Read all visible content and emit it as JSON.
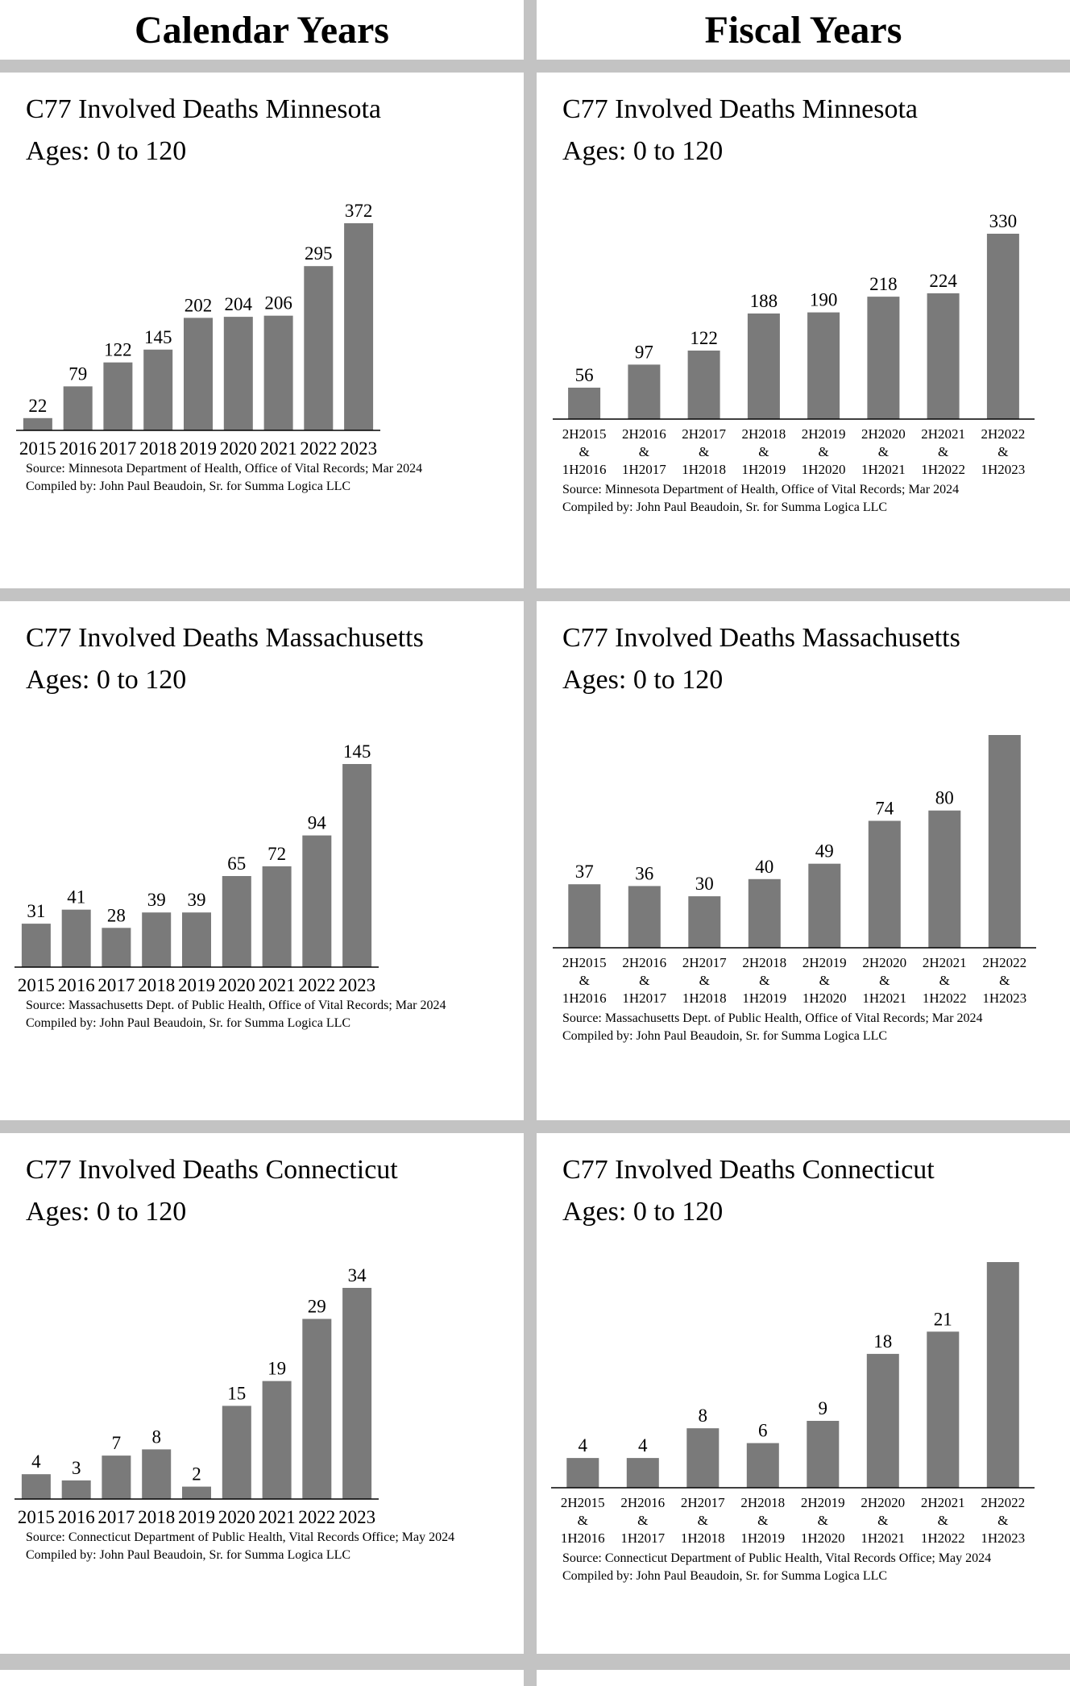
{
  "headers": {
    "calendar": "Calendar Years",
    "fiscal": "Fiscal Years"
  },
  "colors": {
    "bar": "#7a7a7a",
    "divider": "#c3c3c3"
  },
  "chart_data": [
    {
      "type": "bar",
      "title": "C77 Involved Deaths Minnesota",
      "subtitle": "Ages:  0 to 120",
      "categories": [
        "2015",
        "2016",
        "2017",
        "2018",
        "2019",
        "2020",
        "2021",
        "2022",
        "2023"
      ],
      "values": [
        22,
        79,
        122,
        145,
        202,
        204,
        206,
        295,
        372
      ],
      "ylim": [
        0,
        372
      ],
      "source": "Source:  Minnesota Department of Health, Office of Vital Records; Mar 2024",
      "compiled": "Compiled by:  John Paul Beaudoin, Sr. for Summa Logica LLC",
      "xlabel": "",
      "ylabel": ""
    },
    {
      "type": "bar",
      "title": "C77 Involved Deaths Minnesota",
      "subtitle": "Ages:  0 to 120",
      "categories": [
        [
          "2H2015",
          "&",
          "1H2016"
        ],
        [
          "2H2016",
          "&",
          "1H2017"
        ],
        [
          "2H2017",
          "&",
          "1H2018"
        ],
        [
          "2H2018",
          "&",
          "1H2019"
        ],
        [
          "2H2019",
          "&",
          "1H2020"
        ],
        [
          "2H2020",
          "&",
          "1H2021"
        ],
        [
          "2H2021",
          "&",
          "1H2022"
        ],
        [
          "2H2022",
          "&",
          "1H2023"
        ]
      ],
      "values": [
        56,
        97,
        122,
        188,
        190,
        218,
        224,
        330
      ],
      "ylim": [
        0,
        330
      ],
      "source": "Source:  Minnesota Department of Health, Office of Vital Records; Mar 2024",
      "compiled": "Compiled by:  John Paul Beaudoin, Sr. for Summa Logica LLC",
      "xlabel": "",
      "ylabel": ""
    },
    {
      "type": "bar",
      "title": "C77 Involved Deaths Massachusetts",
      "subtitle": "Ages:  0 to 120",
      "categories": [
        "2015",
        "2016",
        "2017",
        "2018",
        "2019",
        "2020",
        "2021",
        "2022",
        "2023"
      ],
      "values": [
        31,
        41,
        28,
        39,
        39,
        65,
        72,
        94,
        145
      ],
      "ylim": [
        0,
        145
      ],
      "source": "Source:  Massachusetts Dept. of Public Health, Office of Vital Records; Mar 2024",
      "compiled": "Compiled by:  John Paul Beaudoin, Sr. for Summa Logica LLC",
      "xlabel": "",
      "ylabel": ""
    },
    {
      "type": "bar",
      "title": "C77 Involved Deaths Massachusetts",
      "subtitle": "Ages:  0 to 120",
      "categories": [
        [
          "2H2015",
          "&",
          "1H2016"
        ],
        [
          "2H2016",
          "&",
          "1H2017"
        ],
        [
          "2H2017",
          "&",
          "1H2018"
        ],
        [
          "2H2018",
          "&",
          "1H2019"
        ],
        [
          "2H2019",
          "&",
          "1H2020"
        ],
        [
          "2H2020",
          "&",
          "1H2021"
        ],
        [
          "2H2021",
          "&",
          "1H2022"
        ],
        [
          "2H2022",
          "&",
          "1H2023"
        ]
      ],
      "values": [
        37,
        36,
        30,
        40,
        49,
        74,
        80,
        124
      ],
      "ylim": [
        0,
        124
      ],
      "source": "Source:  Massachusetts Dept. of Public Health, Office of Vital Records; Mar 2024",
      "compiled": "Compiled by:  John Paul Beaudoin, Sr. for Summa Logica LLC",
      "xlabel": "",
      "ylabel": ""
    },
    {
      "type": "bar",
      "title": "C77 Involved Deaths Connecticut",
      "subtitle": "Ages:  0 to 120",
      "categories": [
        "2015",
        "2016",
        "2017",
        "2018",
        "2019",
        "2020",
        "2021",
        "2022",
        "2023"
      ],
      "values": [
        4,
        3,
        7,
        8,
        2,
        15,
        19,
        29,
        34
      ],
      "ylim": [
        0,
        34
      ],
      "source": "Source:  Connecticut Department of Public Health, Vital Records Office; May 2024",
      "compiled": "Compiled by:  John Paul Beaudoin, Sr. for Summa Logica LLC",
      "xlabel": "",
      "ylabel": ""
    },
    {
      "type": "bar",
      "title": "C77 Involved Deaths Connecticut",
      "subtitle": "Ages:  0 to 120",
      "categories": [
        [
          "2H2015",
          "&",
          "1H2016"
        ],
        [
          "2H2016",
          "&",
          "1H2017"
        ],
        [
          "2H2017",
          "&",
          "1H2018"
        ],
        [
          "2H2018",
          "&",
          "1H2019"
        ],
        [
          "2H2019",
          "&",
          "1H2020"
        ],
        [
          "2H2020",
          "&",
          "1H2021"
        ],
        [
          "2H2021",
          "&",
          "1H2022"
        ],
        [
          "2H2022",
          "&",
          "1H2023"
        ]
      ],
      "values": [
        4,
        4,
        8,
        6,
        9,
        18,
        21,
        31
      ],
      "ylim": [
        0,
        31
      ],
      "source": "Source:  Connecticut Department of Public Health, Vital Records Office; May 2024",
      "compiled": "Compiled by:  John Paul Beaudoin, Sr. for Summa Logica LLC",
      "xlabel": "",
      "ylabel": ""
    }
  ]
}
